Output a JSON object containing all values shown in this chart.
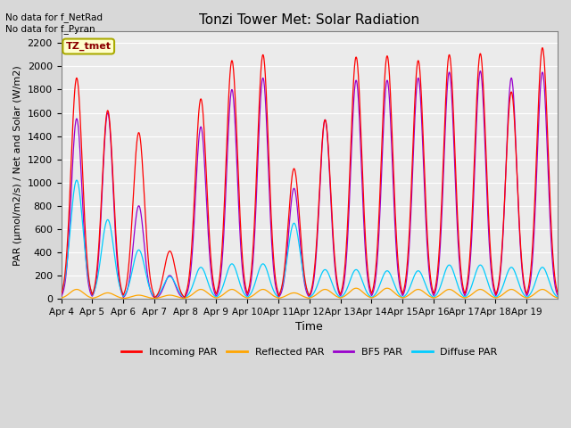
{
  "title": "Tonzi Tower Met: Solar Radiation",
  "ylabel": "PAR (μmol/m2/s) / Net and Solar (W/m2)",
  "xlabel": "Time",
  "ylim": [
    0,
    2300
  ],
  "yticks": [
    0,
    200,
    400,
    600,
    800,
    1000,
    1200,
    1400,
    1600,
    1800,
    2000,
    2200
  ],
  "bg_color": "#d8d8d8",
  "plot_bg_color": "#ebebeb",
  "annotation_text": "No data for f_NetRad\nNo data for f_Pyran",
  "legend_label": "TZ_tmet",
  "legend_box_color": "#ffffcc",
  "legend_box_edge": "#aaaa00",
  "colors": {
    "incoming": "#ff0000",
    "reflected": "#ffa500",
    "bf5": "#9900cc",
    "diffuse": "#00ccff"
  },
  "legend_entries": [
    "Incoming PAR",
    "Reflected PAR",
    "BF5 PAR",
    "Diffuse PAR"
  ],
  "x_tick_labels": [
    "Apr 4",
    "Apr 5",
    "Apr 6",
    "Apr 7",
    "Apr 8",
    "Apr 9",
    "Apr 10",
    "Apr 11",
    "Apr 12",
    "Apr 13",
    "Apr 14",
    "Apr 15",
    "Apr 16",
    "Apr 17",
    "Apr 18",
    "Apr 19"
  ],
  "days": 16,
  "points_per_day": 96,
  "day_peaks": {
    "incoming": [
      1900,
      1620,
      1430,
      410,
      1720,
      2050,
      2100,
      1120,
      1540,
      2080,
      2090,
      2050,
      2100,
      2110,
      1780,
      2160
    ],
    "reflected": [
      80,
      50,
      30,
      30,
      80,
      80,
      80,
      50,
      80,
      90,
      90,
      80,
      80,
      80,
      80,
      80
    ],
    "bf5": [
      1550,
      1600,
      800,
      200,
      1480,
      1800,
      1900,
      950,
      1540,
      1880,
      1880,
      1900,
      1950,
      1960,
      1900,
      1950
    ],
    "diffuse": [
      1020,
      680,
      420,
      190,
      270,
      300,
      300,
      650,
      250,
      250,
      240,
      240,
      290,
      290,
      270,
      270
    ]
  }
}
